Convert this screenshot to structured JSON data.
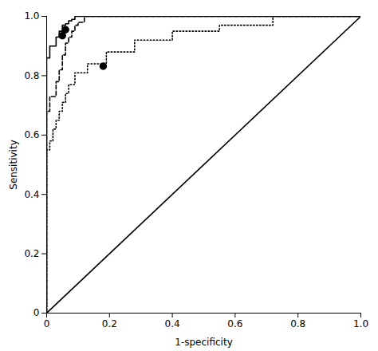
{
  "chart_data": {
    "type": "line",
    "xlabel": "1-specificity",
    "ylabel": "Sensitivity",
    "xlim": [
      0,
      1.0
    ],
    "ylim": [
      0,
      1.0
    ],
    "xticks": [
      0,
      0.2,
      0.4,
      0.6,
      0.8,
      {
        "value": 1.0,
        "label": "1.0"
      }
    ],
    "yticks": [
      0,
      0.2,
      0.4,
      0.6,
      0.8,
      {
        "value": 1.0,
        "label": "1.0"
      }
    ],
    "grid": false,
    "series": [
      {
        "type": "line",
        "line_style": "solid",
        "color": "#000000",
        "x": [
          0,
          1
        ],
        "values": [
          0,
          1
        ]
      },
      {
        "type": "line",
        "line_style": "solid",
        "color": "#000000",
        "x": [
          0.0,
          0.0,
          0.01,
          0.01,
          0.03,
          0.03,
          0.04,
          0.04,
          0.05,
          0.05,
          0.06,
          0.06,
          0.07,
          0.07,
          0.08,
          0.08,
          0.09,
          0.09,
          0.1,
          0.1,
          1.0
        ],
        "values": [
          0.0,
          0.86,
          0.86,
          0.9,
          0.9,
          0.93,
          0.93,
          0.95,
          0.95,
          0.97,
          0.97,
          0.975,
          0.975,
          0.985,
          0.985,
          0.99,
          0.99,
          1.0,
          1.0,
          1.0,
          1.0
        ]
      },
      {
        "type": "line",
        "line_style": "dashed",
        "color": "#000000",
        "x": [
          0.0,
          0.0,
          0.01,
          0.01,
          0.03,
          0.03,
          0.04,
          0.04,
          0.05,
          0.05,
          0.06,
          0.06,
          0.07,
          0.07,
          0.08,
          0.08,
          0.09,
          0.09,
          0.1,
          0.1,
          0.12,
          0.12,
          1.0
        ],
        "values": [
          0.0,
          0.68,
          0.68,
          0.73,
          0.73,
          0.78,
          0.78,
          0.82,
          0.82,
          0.87,
          0.87,
          0.91,
          0.91,
          0.93,
          0.93,
          0.95,
          0.95,
          0.97,
          0.97,
          0.98,
          0.98,
          1.0,
          1.0
        ]
      },
      {
        "type": "line",
        "line_style": "dotted",
        "color": "#000000",
        "x": [
          0.0,
          0.0,
          0.01,
          0.01,
          0.02,
          0.02,
          0.03,
          0.03,
          0.04,
          0.04,
          0.05,
          0.05,
          0.06,
          0.06,
          0.07,
          0.07,
          0.09,
          0.09,
          0.13,
          0.13,
          0.19,
          0.19,
          0.28,
          0.28,
          0.4,
          0.4,
          0.55,
          0.55,
          0.72,
          0.72,
          1.0
        ],
        "values": [
          0.0,
          0.55,
          0.55,
          0.58,
          0.58,
          0.62,
          0.62,
          0.65,
          0.65,
          0.68,
          0.68,
          0.71,
          0.71,
          0.74,
          0.74,
          0.77,
          0.77,
          0.81,
          0.81,
          0.84,
          0.84,
          0.88,
          0.88,
          0.92,
          0.92,
          0.95,
          0.95,
          0.97,
          0.97,
          1.0,
          1.0
        ]
      },
      {
        "type": "scatter",
        "marker": "circle",
        "color": "#000000",
        "x": [
          0.05,
          0.06,
          0.18
        ],
        "values": [
          0.935,
          0.955,
          0.832
        ]
      }
    ]
  }
}
